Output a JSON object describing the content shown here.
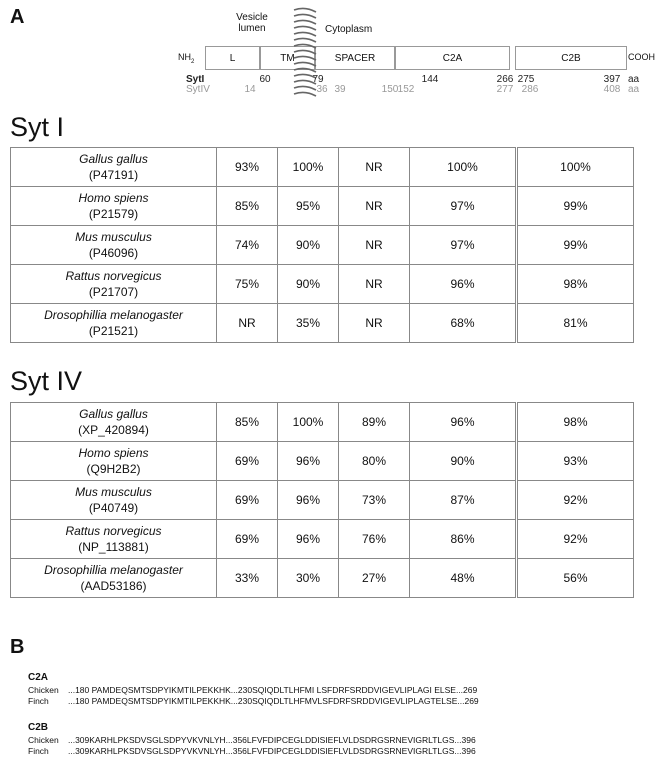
{
  "panel_a": {
    "label": "A",
    "diagram": {
      "regions": [
        "Vesicle lumen",
        "Cytoplasm"
      ],
      "n_terminus": "NH",
      "n_terminus_sub": "2",
      "c_terminus": "COOH",
      "domains": [
        "L",
        "TM",
        "SPACER",
        "C2A",
        "C2B"
      ],
      "rows": [
        {
          "name": "SytI",
          "boundaries": [
            "60",
            "79",
            "144",
            "266",
            "275",
            "397"
          ],
          "unit": "aa"
        },
        {
          "name": "SytIV",
          "boundaries": [
            "14",
            "36",
            "39",
            "150",
            "152",
            "277",
            "286",
            "408"
          ],
          "unit": "aa"
        }
      ]
    },
    "tables": [
      {
        "title": "Syt I",
        "rows": [
          {
            "species": "Gallus gallus",
            "accession": "(P47191)",
            "values": [
              "93%",
              "100%",
              "NR",
              "100%",
              "100%"
            ]
          },
          {
            "species": "Homo spiens",
            "accession": "(P21579)",
            "values": [
              "85%",
              "95%",
              "NR",
              "97%",
              "99%"
            ]
          },
          {
            "species": "Mus musculus",
            "accession": "(P46096)",
            "values": [
              "74%",
              "90%",
              "NR",
              "97%",
              "99%"
            ]
          },
          {
            "species": "Rattus norvegicus",
            "accession": "(P21707)",
            "values": [
              "75%",
              "90%",
              "NR",
              "96%",
              "98%"
            ]
          },
          {
            "species": "Drosophillia melanogaster",
            "accession": "(P21521)",
            "values": [
              "NR",
              "35%",
              "NR",
              "68%",
              "81%"
            ]
          }
        ]
      },
      {
        "title": "Syt IV",
        "rows": [
          {
            "species": "Gallus gallus",
            "accession": "(XP_420894)",
            "values": [
              "85%",
              "100%",
              "89%",
              "96%",
              "98%"
            ]
          },
          {
            "species": "Homo spiens",
            "accession": "(Q9H2B2)",
            "values": [
              "69%",
              "96%",
              "80%",
              "90%",
              "93%"
            ]
          },
          {
            "species": "Mus musculus",
            "accession": "(P40749)",
            "values": [
              "69%",
              "96%",
              "73%",
              "87%",
              "92%"
            ]
          },
          {
            "species": "Rattus norvegicus",
            "accession": "(NP_113881)",
            "values": [
              "69%",
              "96%",
              "76%",
              "86%",
              "92%"
            ]
          },
          {
            "species": "Drosophillia melanogaster",
            "accession": "(AAD53186)",
            "values": [
              "33%",
              "30%",
              "27%",
              "48%",
              "56%"
            ]
          }
        ]
      }
    ]
  },
  "panel_b": {
    "label": "B",
    "blocks": [
      {
        "title": "C2A",
        "lines": [
          {
            "organism": "Chicken",
            "sequence": "...180 PAMDEQSMTSDPYIKMTILPEKKHK...230SQIQDLTLHFMI LSFDRFSRDDVIGEVLIPLAGI ELSE...269"
          },
          {
            "organism": "Finch",
            "sequence": "...180 PAMDEQSMTSDPYIKMTILPEKKHK...230SQIQDLTLHFMVLSFDRFSRDDVIGEVLIPLAGTELSE...269"
          }
        ]
      },
      {
        "title": "C2B",
        "lines": [
          {
            "organism": "Chicken",
            "sequence": "...309KARHLPKSDVSGLSDPYVKVNLYH...356LFVFDIPCEGLDDISIEFLVLDSDRGSRNEVIGRLTLGS...396"
          },
          {
            "organism": "Finch",
            "sequence": "...309KARHLPKSDVSGLSDPYVKVNLYH...356LFVFDIPCEGLDDISIEFLVLDSDRGSRNEVIGRLTLGS...396"
          }
        ]
      }
    ]
  }
}
